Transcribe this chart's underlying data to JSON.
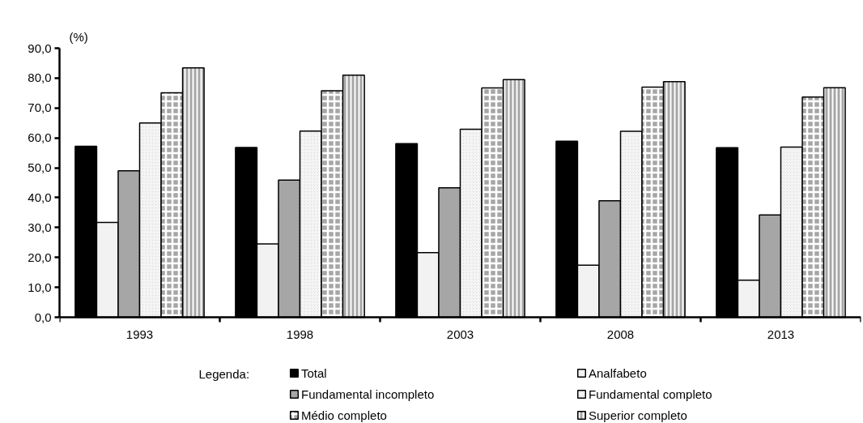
{
  "chart_data": {
    "type": "bar",
    "ylabel": "(%)",
    "legend_title": "Legenda:",
    "legend": "bottom",
    "grid": false,
    "categories": [
      "1993",
      "1998",
      "2003",
      "2008",
      "2013"
    ],
    "ylim": [
      0,
      90
    ],
    "yticks": [
      {
        "value": 0,
        "label": "0,0"
      },
      {
        "value": 10,
        "label": "10,0"
      },
      {
        "value": 20,
        "label": "20,0"
      },
      {
        "value": 30,
        "label": "30,0"
      },
      {
        "value": 40,
        "label": "40,0"
      },
      {
        "value": 50,
        "label": "50,0"
      },
      {
        "value": 60,
        "label": "60,0"
      },
      {
        "value": 70,
        "label": "70,0"
      },
      {
        "value": 80,
        "label": "80,0"
      },
      {
        "value": 90,
        "label": "90,0"
      }
    ],
    "series": [
      {
        "name": "Total",
        "color": "#000000",
        "values": [
          57.2,
          56.8,
          58.1,
          58.9,
          56.7
        ]
      },
      {
        "name": "Analfabeto",
        "color": "#f2f2f2",
        "values": [
          31.7,
          24.5,
          21.6,
          17.4,
          12.4
        ]
      },
      {
        "name": "Fundamental incompleto",
        "color": "#a6a6a6",
        "values": [
          49.0,
          45.9,
          43.3,
          39.0,
          34.2
        ]
      },
      {
        "name": "Fundamental completo",
        "color": "#d9d9d9",
        "values": [
          65.0,
          62.3,
          62.9,
          62.2,
          56.9
        ]
      },
      {
        "name": "Médio completo",
        "color": "#a6a6a6",
        "values": [
          75.1,
          75.8,
          76.7,
          77.0,
          73.7
        ]
      },
      {
        "name": "Superior completo",
        "color": "#a6a6a6",
        "values": [
          83.4,
          81.0,
          79.5,
          78.8,
          76.8
        ]
      }
    ]
  }
}
